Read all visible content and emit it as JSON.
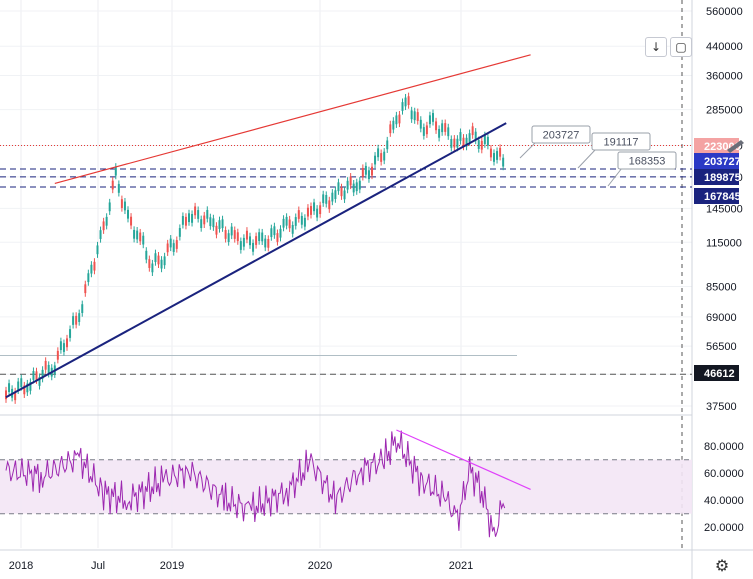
{
  "chart_data": [
    {
      "type": "candlestick",
      "title": "",
      "scale": "log",
      "y_ticks": [
        "560000",
        "440000",
        "360000",
        "285000",
        "223000",
        "180000",
        "145000",
        "115000",
        "85000",
        "69000",
        "56500",
        "46612",
        "37500"
      ],
      "x_ticks": [
        "2018",
        "Jul",
        "2019",
        "2020",
        "2021"
      ],
      "price_labels": [
        {
          "text": "223000",
          "value": 223000,
          "bg": "#f4a3a3",
          "fg": "#ffffff"
        },
        {
          "text": "203727",
          "value": 203727,
          "bg": "#2b39c5",
          "fg": "#ffffff"
        },
        {
          "text": "189875",
          "value": 189875,
          "bg": "#1a237e",
          "fg": "#ffffff"
        },
        {
          "text": "167845",
          "value": 167845,
          "bg": "#1a237e",
          "fg": "#ffffff"
        },
        {
          "text": "46612",
          "value": 46612,
          "bg": "#131722",
          "fg": "#ffffff"
        }
      ],
      "horizontal_levels": [
        {
          "value": 223000,
          "color": "#e53935",
          "style": "dotted"
        },
        {
          "value": 189875,
          "color": "#1a237e",
          "style": "dashed"
        },
        {
          "value": 180000,
          "color": "#1a237e",
          "style": "dashed"
        },
        {
          "value": 167845,
          "color": "#1a237e",
          "style": "dashed"
        },
        {
          "value": 46612,
          "color": "#555555",
          "style": "dashed"
        }
      ],
      "callouts": [
        "203727",
        "191117",
        "168353"
      ],
      "trendlines": [
        {
          "name": "upper-resistance",
          "color": "#e53935",
          "from": [
            "2018-04",
            172000
          ],
          "to": [
            "2021-07",
            415000
          ]
        },
        {
          "name": "lower-support",
          "color": "#1a237e",
          "from": [
            "2017-12",
            39800
          ],
          "to": [
            "2021-05",
            260000
          ]
        }
      ],
      "series": [
        {
          "x": [
            "2017-12",
            "2018-02",
            "2018-04",
            "2018-05",
            "2018-06",
            "2018-07",
            "2018-08",
            "2018-09",
            "2018-10",
            "2018-11",
            "2018-12",
            "2019-01",
            "2019-02",
            "2019-03",
            "2019-05",
            "2019-07",
            "2019-09",
            "2019-11",
            "2020-01",
            "2020-03",
            "2020-05",
            "2020-06",
            "2020-07",
            "2020-08",
            "2020-09",
            "2020-10",
            "2020-11",
            "2020-12",
            "2021-01",
            "2021-02",
            "2021-03",
            "2021-04",
            "2021-05"
          ],
          "values": [
            40500,
            44000,
            50000,
            60000,
            70000,
            95000,
            125000,
            180000,
            135000,
            118000,
            98000,
            105000,
            118000,
            140000,
            132000,
            117000,
            115000,
            128000,
            140000,
            160000,
            175000,
            195000,
            215000,
            270000,
            300000,
            250000,
            260000,
            245000,
            225000,
            240000,
            232000,
            214000,
            196000
          ]
        }
      ]
    },
    {
      "type": "line",
      "title": "",
      "y_ticks": [
        "80.0000",
        "60.0000",
        "40.0000",
        "20.0000"
      ],
      "band": [
        30,
        70
      ],
      "levels": [
        70,
        30
      ],
      "trendline": {
        "color": "#e040fb",
        "from": [
          "2020-08",
          92
        ],
        "to": [
          "2021-07",
          48
        ]
      },
      "series": [
        {
          "x": [
            "2017-12",
            "2018-03",
            "2018-06",
            "2018-08",
            "2018-10",
            "2019-01",
            "2019-03",
            "2019-06",
            "2019-08",
            "2019-11",
            "2020-01",
            "2020-03",
            "2020-05",
            "2020-07",
            "2020-08",
            "2020-10",
            "2020-12",
            "2021-01",
            "2021-02",
            "2021-03",
            "2021-04",
            "2021-05"
          ],
          "values": [
            62,
            58,
            72,
            45,
            40,
            55,
            62,
            40,
            33,
            46,
            68,
            40,
            62,
            70,
            85,
            55,
            42,
            25,
            62,
            48,
            12,
            48
          ]
        }
      ]
    }
  ],
  "ui": {
    "icons": {
      "scale_down": "arrow-down-icon",
      "auto_scale": "auto-scale-icon",
      "settings": "gear-icon"
    }
  }
}
